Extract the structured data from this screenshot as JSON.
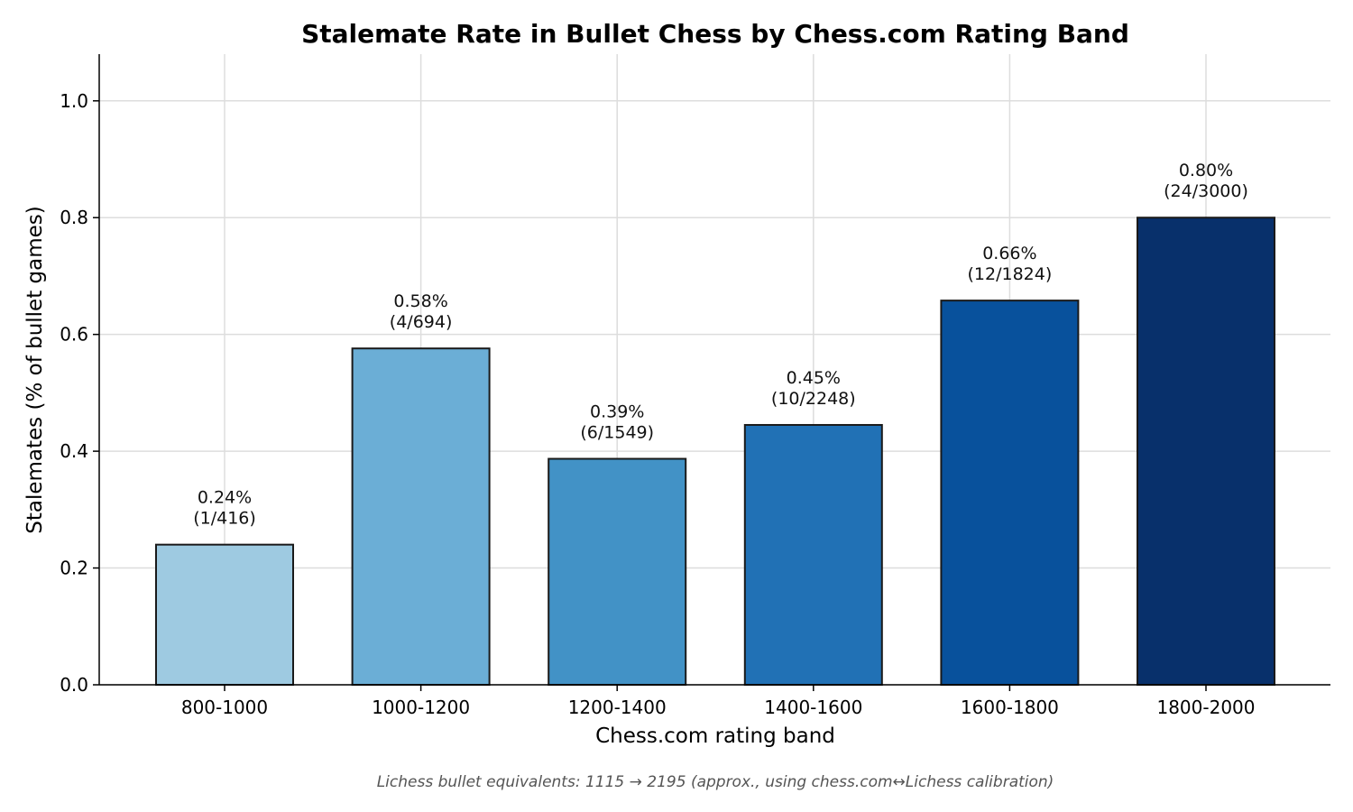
{
  "chart_data": {
    "type": "bar",
    "title": "Stalemate Rate in Bullet Chess by Chess.com Rating Band",
    "xlabel": "Chess.com rating band",
    "ylabel": "Stalemates (% of bullet games)",
    "ylim": [
      0,
      1.08
    ],
    "yticks": [
      0.0,
      0.2,
      0.4,
      0.6,
      0.8,
      1.0
    ],
    "ytick_labels": [
      "0.0",
      "0.2",
      "0.4",
      "0.6",
      "0.8",
      "1.0"
    ],
    "grid": true,
    "categories": [
      "800-1000",
      "1000-1200",
      "1200-1400",
      "1400-1600",
      "1600-1800",
      "1800-2000"
    ],
    "values": [
      0.24,
      0.576,
      0.387,
      0.445,
      0.658,
      0.8
    ],
    "value_labels": [
      "0.24%",
      "0.58%",
      "0.39%",
      "0.45%",
      "0.66%",
      "0.80%"
    ],
    "count_labels": [
      "(1/416)",
      "(4/694)",
      "(6/1549)",
      "(10/2248)",
      "(12/1824)",
      "(24/3000)"
    ],
    "colors": [
      "#9ecae1",
      "#6baed6",
      "#4292c6",
      "#2171b5",
      "#08519c",
      "#08306b"
    ],
    "caption": "Lichess bullet equivalents: 1115 → 2195 (approx., using chess.com↔Lichess calibration)"
  }
}
